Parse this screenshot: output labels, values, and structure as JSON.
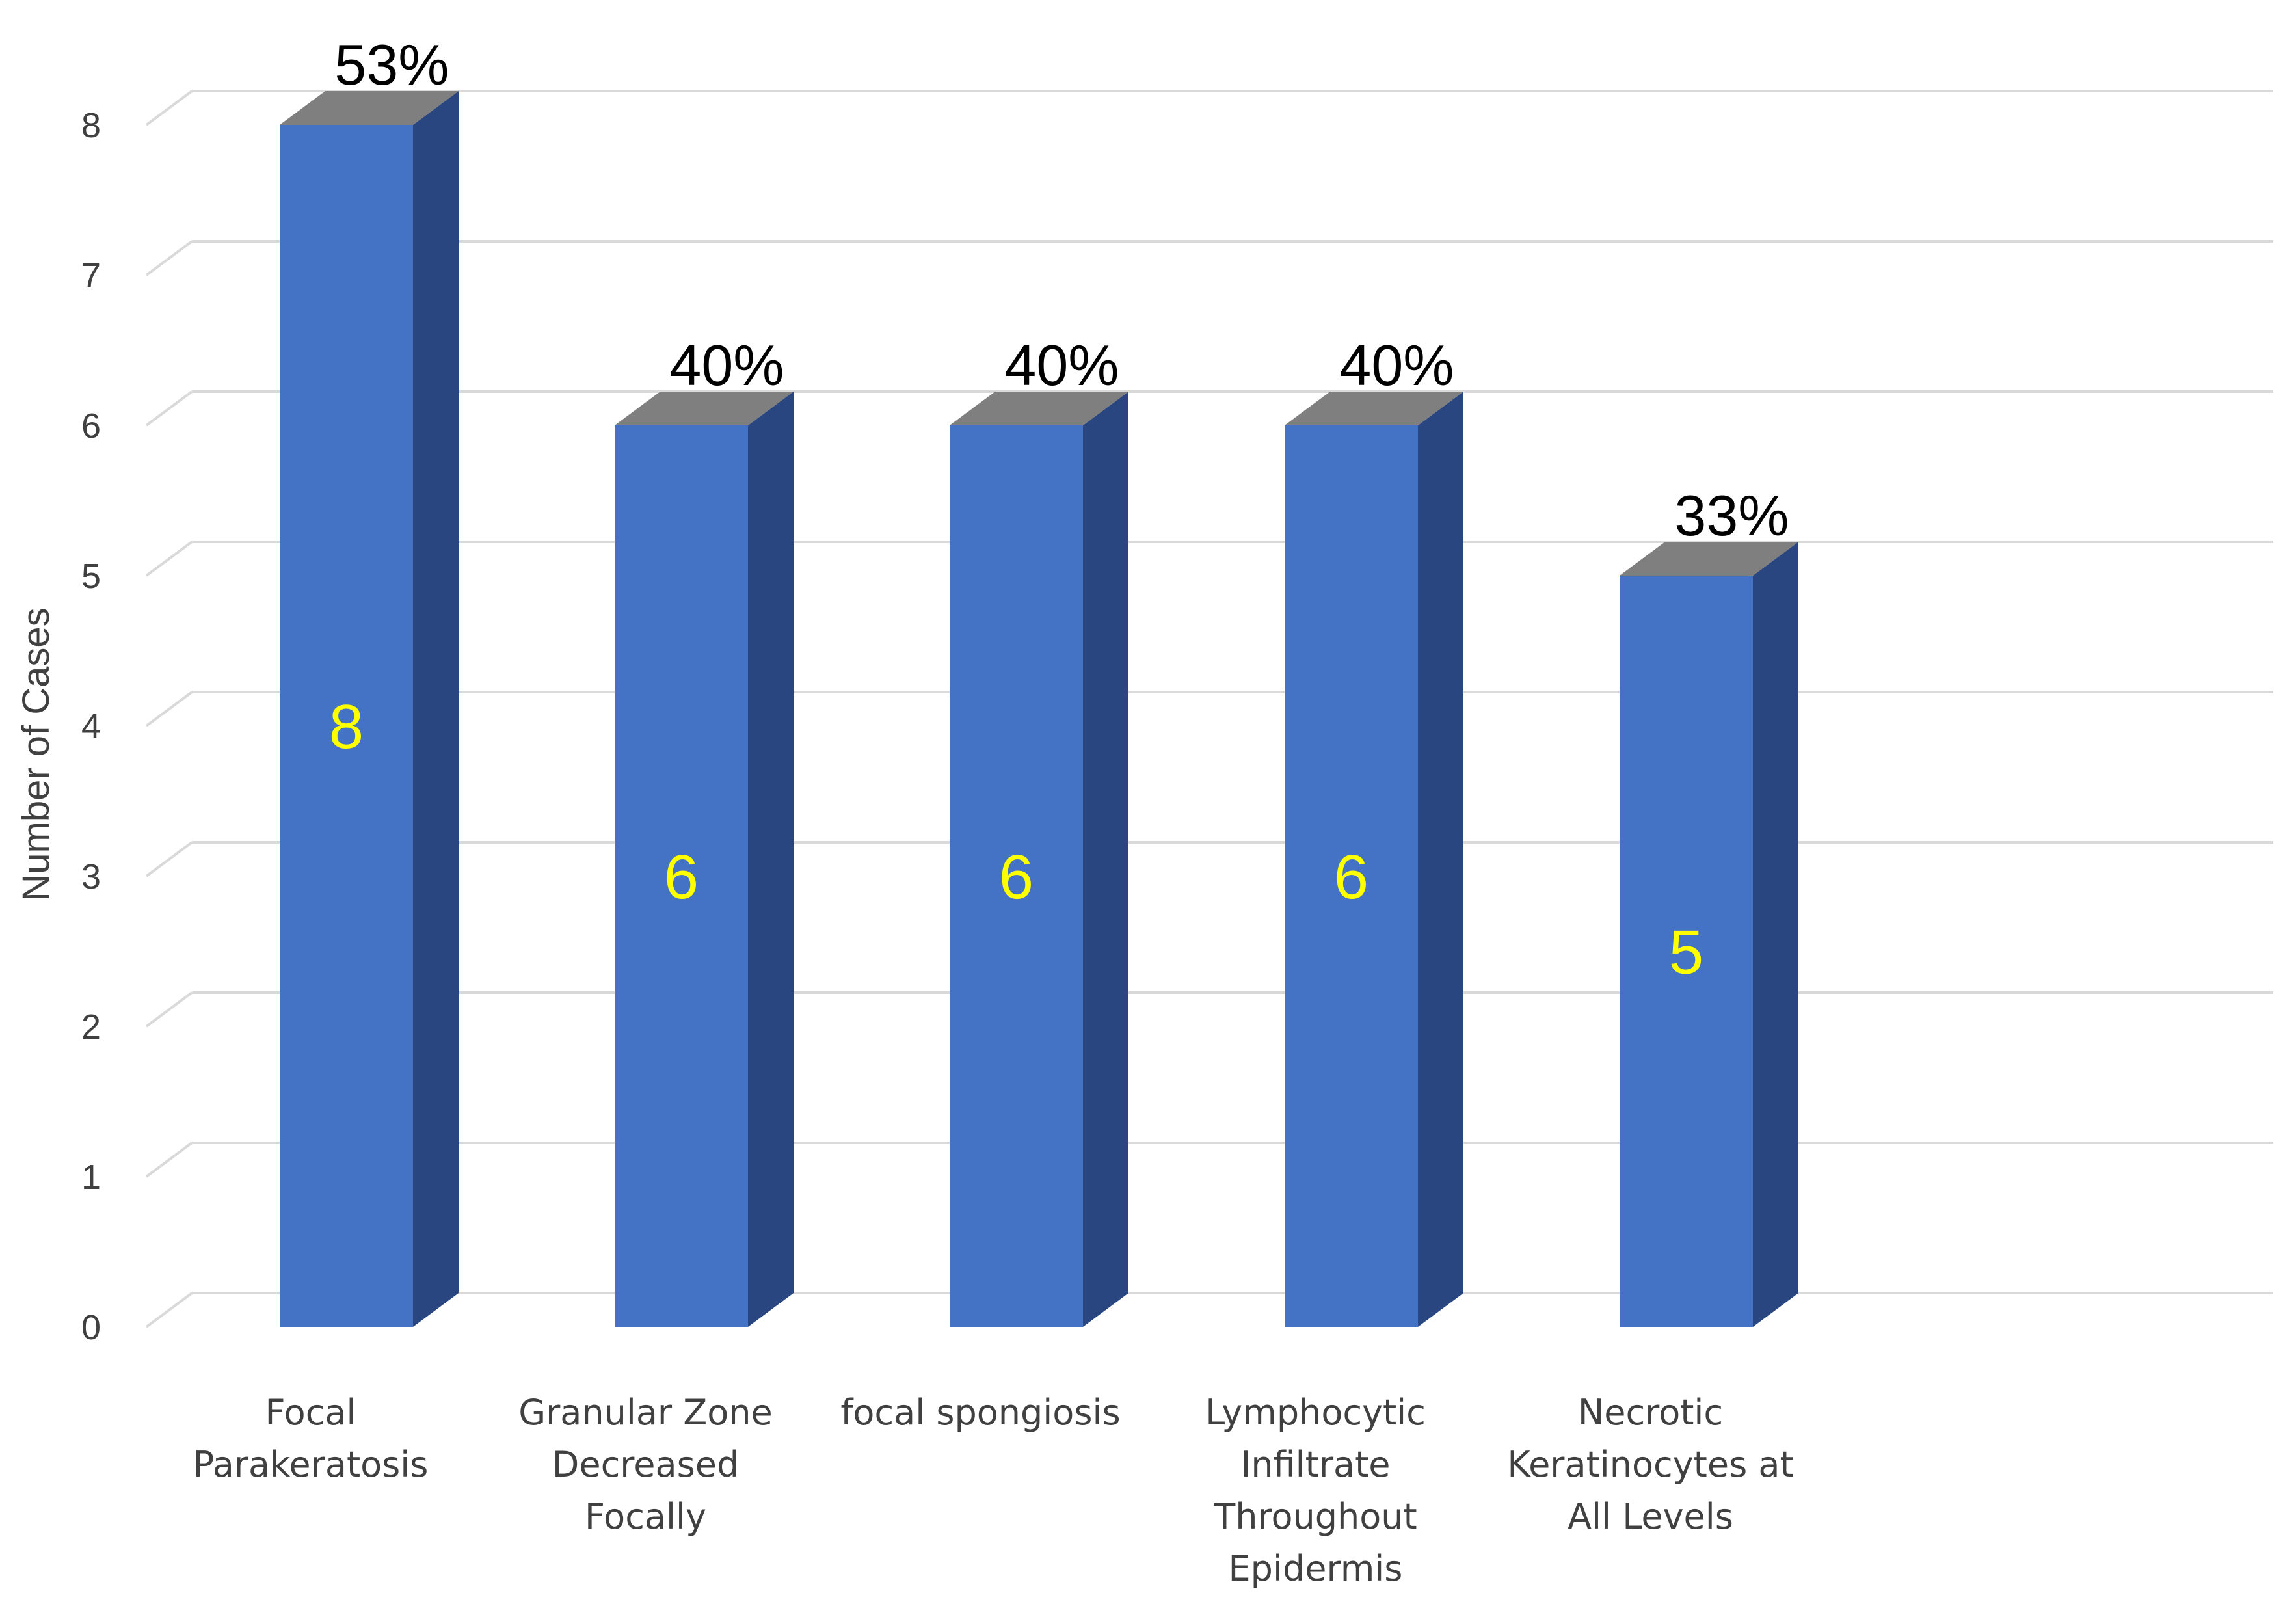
{
  "chart_data": {
    "type": "bar",
    "categories": [
      [
        "Focal",
        "Parakeratosis"
      ],
      [
        "Granular Zone",
        "Decreased",
        "Focally"
      ],
      [
        "focal spongiosis"
      ],
      [
        "Lymphocytic",
        "Infiltrate",
        "Throughout",
        "Epidermis"
      ],
      [
        "Necrotic",
        "Keratinocytes at",
        "All Levels"
      ]
    ],
    "values": [
      8,
      6,
      6,
      6,
      5
    ],
    "value_labels": [
      "8",
      "6",
      "6",
      "6",
      "5"
    ],
    "percent_labels": [
      "53%",
      "40%",
      "40%",
      "40%",
      "33%"
    ],
    "ylabel": "Number of Cases",
    "xlabel": "",
    "title": "",
    "ylim": [
      0,
      8
    ],
    "yticks": [
      "0",
      "1",
      "2",
      "3",
      "4",
      "5",
      "6",
      "7",
      "8"
    ],
    "grid": true,
    "style": "3d-column",
    "colors": {
      "bar_front": "#4472C4",
      "bar_side": "#2A4680",
      "bar_top": "#7F7F7F",
      "value_label": "#FFFF00",
      "grid": "#D9D9D9"
    }
  }
}
